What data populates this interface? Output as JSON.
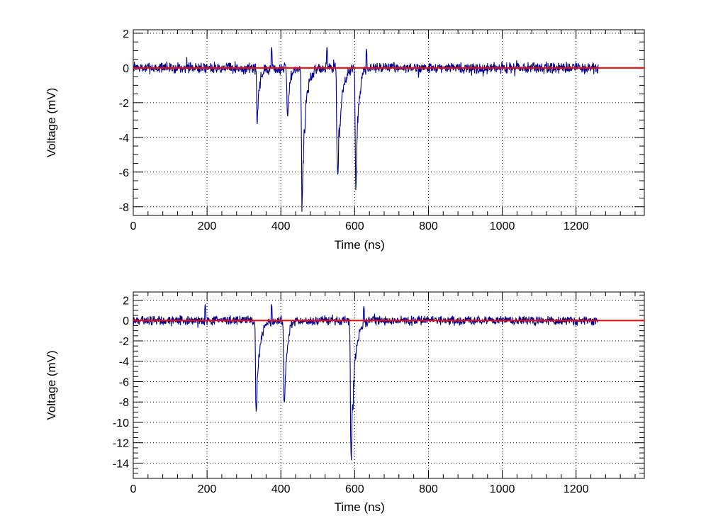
{
  "chart_data": [
    {
      "type": "line",
      "xlabel": "Time (ns)",
      "ylabel": "Voltage (mV)",
      "xlim": [
        0,
        1385
      ],
      "ylim": [
        -8.5,
        2.2
      ],
      "grid": true,
      "x_ticks": [
        0,
        200,
        400,
        600,
        800,
        1000,
        1200
      ],
      "x_tick_labels": [
        "0",
        "200",
        "400",
        "600",
        "800",
        "1000",
        "1200"
      ],
      "y_ticks": [
        2,
        0,
        -2,
        -4,
        -6,
        -8
      ],
      "y_tick_labels": [
        "2",
        "0",
        "-2",
        "-4",
        "-6",
        "-8"
      ],
      "series": [
        {
          "color": "#00008b",
          "x_range": [
            0,
            1260
          ],
          "noise_amplitude": 0.25,
          "noise_seed": 7,
          "pulses": [
            {
              "t": 336,
              "amplitude": -3.0,
              "width": 6
            },
            {
              "t": 418,
              "amplitude": -3.3,
              "width": 5
            },
            {
              "t": 457,
              "amplitude": -7.6,
              "width": 9
            },
            {
              "t": 553,
              "amplitude": -6.8,
              "width": 9
            },
            {
              "t": 603,
              "amplitude": -7.0,
              "width": 7
            }
          ],
          "peaks": [
            {
              "t": 375,
              "v": 1.2
            },
            {
              "t": 525,
              "v": 1.2
            },
            {
              "t": 632,
              "v": 1.1
            }
          ]
        },
        {
          "color": "#ff0000",
          "x": [
            0,
            1385
          ],
          "y": [
            0,
            0
          ]
        }
      ]
    },
    {
      "type": "line",
      "xlabel": "Time (ns)",
      "ylabel": "Voltage (mV)",
      "xlim": [
        0,
        1385
      ],
      "ylim": [
        -15.5,
        2.8
      ],
      "grid": true,
      "x_ticks": [
        0,
        200,
        400,
        600,
        800,
        1000,
        1200
      ],
      "x_tick_labels": [
        "0",
        "200",
        "400",
        "600",
        "800",
        "1000",
        "1200"
      ],
      "y_ticks": [
        2,
        0,
        -2,
        -4,
        -6,
        -8,
        -10,
        -12,
        -14
      ],
      "y_tick_labels": [
        "2",
        "0",
        "-2",
        "-4",
        "-6",
        "-8",
        "-10",
        "-12",
        "-14"
      ],
      "series": [
        {
          "color": "#00008b",
          "x_range": [
            0,
            1260
          ],
          "noise_amplitude": 0.35,
          "noise_seed": 13,
          "pulses": [
            {
              "t": 333,
              "amplitude": -8.7,
              "width": 9
            },
            {
              "t": 409,
              "amplitude": -9.2,
              "width": 7
            },
            {
              "t": 590,
              "amplitude": -14.3,
              "width": 9
            }
          ],
          "peaks": [
            {
              "t": 195,
              "v": 1.6
            },
            {
              "t": 375,
              "v": 1.6
            },
            {
              "t": 625,
              "v": 1.4
            }
          ]
        },
        {
          "color": "#ff0000",
          "x": [
            0,
            1385
          ],
          "y": [
            0,
            0
          ]
        }
      ]
    }
  ]
}
